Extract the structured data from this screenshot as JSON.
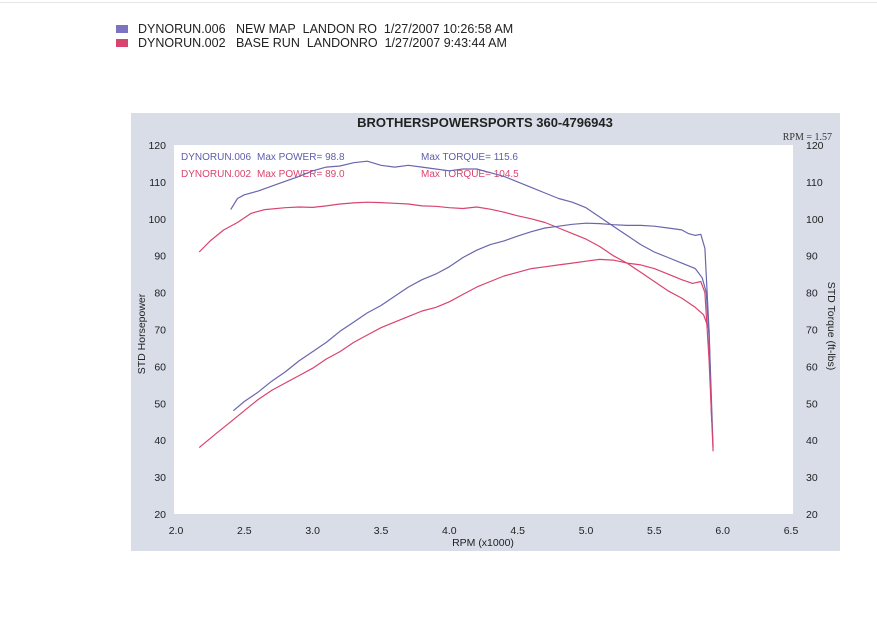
{
  "legend": [
    {
      "run": "DYNORUN.006",
      "name": "NEW MAP",
      "operator": "LANDON RO",
      "date": "1/27/2007 10:26:58 AM",
      "color": "#7b74c0"
    },
    {
      "run": "DYNORUN.002",
      "name": "BASE RUN",
      "operator": "LANDONRO",
      "date": "1/27/2007 9:43:44 AM",
      "color": "#d9446e"
    }
  ],
  "chart_data": {
    "type": "line",
    "title": "BROTHERSPOWERSPORTS 360-4796943",
    "rpm_note": "RPM = 1.57",
    "xlabel": "RPM (x1000)",
    "ylabel_left": "STD Horsepower",
    "ylabel_right": "STD Torque (ft-lbs)",
    "xlim": [
      2.0,
      6.5
    ],
    "ylim_left": [
      20,
      120
    ],
    "ylim_right": [
      20,
      120
    ],
    "x_ticks": [
      "2.0",
      "2.5",
      "3.0",
      "3.5",
      "4.0",
      "4.5",
      "5.0",
      "5.5",
      "6.0",
      "6.5"
    ],
    "y_ticks_left": [
      "120",
      "110",
      "100",
      "90",
      "80",
      "70",
      "60",
      "50",
      "40",
      "30",
      "20"
    ],
    "y_ticks_right": [
      "120",
      "110",
      "100",
      "90",
      "80",
      "70",
      "60",
      "50",
      "40",
      "30",
      "20"
    ],
    "grid": false,
    "annotations": [
      {
        "label": "DYNORUN.006",
        "power_text": "Max POWER= 98.8",
        "torque_text": "Max TORQUE= 115.6",
        "color": "#5e5ea8"
      },
      {
        "label": "DYNORUN.002",
        "power_text": "Max POWER= 89.0",
        "torque_text": "Max TORQUE= 104.5",
        "color": "#d9446e"
      }
    ],
    "series": [
      {
        "name": "DYNORUN.006 Torque",
        "color": "#6a66ad",
        "axis": "right",
        "points": [
          [
            2.4,
            102.5
          ],
          [
            2.45,
            105.5
          ],
          [
            2.5,
            106.5
          ],
          [
            2.6,
            107.5
          ],
          [
            2.75,
            109.5
          ],
          [
            2.9,
            111.5
          ],
          [
            3.0,
            113
          ],
          [
            3.1,
            114
          ],
          [
            3.2,
            114.3
          ],
          [
            3.3,
            115.2
          ],
          [
            3.4,
            115.6
          ],
          [
            3.5,
            114.5
          ],
          [
            3.6,
            114
          ],
          [
            3.7,
            114.5
          ],
          [
            3.8,
            114
          ],
          [
            3.9,
            113.5
          ],
          [
            4.0,
            113
          ],
          [
            4.1,
            113.5
          ],
          [
            4.2,
            113.5
          ],
          [
            4.3,
            112.5
          ],
          [
            4.4,
            111.5
          ],
          [
            4.5,
            110
          ],
          [
            4.6,
            108.5
          ],
          [
            4.7,
            107
          ],
          [
            4.8,
            105.5
          ],
          [
            4.9,
            104.5
          ],
          [
            5.0,
            103
          ],
          [
            5.1,
            100.5
          ],
          [
            5.2,
            98
          ],
          [
            5.3,
            95.5
          ],
          [
            5.4,
            93
          ],
          [
            5.5,
            91
          ],
          [
            5.6,
            89.5
          ],
          [
            5.7,
            88
          ],
          [
            5.8,
            86.5
          ],
          [
            5.85,
            84
          ],
          [
            5.88,
            80
          ],
          [
            5.9,
            68
          ],
          [
            5.92,
            45
          ]
        ]
      },
      {
        "name": "DYNORUN.002 Torque",
        "color": "#d9446e",
        "axis": "right",
        "points": [
          [
            2.17,
            91
          ],
          [
            2.25,
            94
          ],
          [
            2.35,
            97
          ],
          [
            2.45,
            99
          ],
          [
            2.55,
            101.5
          ],
          [
            2.65,
            102.5
          ],
          [
            2.8,
            103
          ],
          [
            2.9,
            103.2
          ],
          [
            3.0,
            103.1
          ],
          [
            3.1,
            103.5
          ],
          [
            3.2,
            104
          ],
          [
            3.3,
            104.3
          ],
          [
            3.4,
            104.5
          ],
          [
            3.5,
            104.4
          ],
          [
            3.6,
            104.2
          ],
          [
            3.7,
            104
          ],
          [
            3.8,
            103.5
          ],
          [
            3.9,
            103.4
          ],
          [
            4.0,
            103
          ],
          [
            4.1,
            102.8
          ],
          [
            4.2,
            103.2
          ],
          [
            4.3,
            102.6
          ],
          [
            4.4,
            101.8
          ],
          [
            4.5,
            100.8
          ],
          [
            4.6,
            100
          ],
          [
            4.7,
            99
          ],
          [
            4.8,
            97.5
          ],
          [
            4.9,
            96
          ],
          [
            5.0,
            94.5
          ],
          [
            5.1,
            92.5
          ],
          [
            5.2,
            90
          ],
          [
            5.3,
            88
          ],
          [
            5.4,
            85.5
          ],
          [
            5.5,
            83
          ],
          [
            5.6,
            80.5
          ],
          [
            5.7,
            78.5
          ],
          [
            5.8,
            76
          ],
          [
            5.86,
            74
          ],
          [
            5.9,
            70
          ],
          [
            5.92,
            46
          ]
        ]
      },
      {
        "name": "DYNORUN.006 Power",
        "color": "#6a66ad",
        "axis": "left",
        "points": [
          [
            2.42,
            48
          ],
          [
            2.5,
            50.5
          ],
          [
            2.6,
            53
          ],
          [
            2.7,
            56
          ],
          [
            2.8,
            58.5
          ],
          [
            2.9,
            61.5
          ],
          [
            3.0,
            64
          ],
          [
            3.1,
            66.5
          ],
          [
            3.2,
            69.5
          ],
          [
            3.3,
            72
          ],
          [
            3.4,
            74.5
          ],
          [
            3.5,
            76.5
          ],
          [
            3.6,
            79
          ],
          [
            3.7,
            81.5
          ],
          [
            3.8,
            83.5
          ],
          [
            3.9,
            85
          ],
          [
            4.0,
            87
          ],
          [
            4.1,
            89.5
          ],
          [
            4.2,
            91.5
          ],
          [
            4.3,
            93
          ],
          [
            4.4,
            94
          ],
          [
            4.5,
            95.3
          ],
          [
            4.6,
            96.5
          ],
          [
            4.7,
            97.5
          ],
          [
            4.8,
            98
          ],
          [
            4.9,
            98.5
          ],
          [
            5.0,
            98.8
          ],
          [
            5.1,
            98.7
          ],
          [
            5.2,
            98.4
          ],
          [
            5.3,
            98.2
          ],
          [
            5.4,
            98.2
          ],
          [
            5.5,
            98
          ],
          [
            5.6,
            97.5
          ],
          [
            5.7,
            97
          ],
          [
            5.75,
            96
          ],
          [
            5.8,
            95.5
          ],
          [
            5.84,
            95.8
          ],
          [
            5.87,
            92
          ],
          [
            5.9,
            70
          ],
          [
            5.93,
            38
          ]
        ]
      },
      {
        "name": "DYNORUN.002 Power",
        "color": "#d9446e",
        "axis": "left",
        "points": [
          [
            2.17,
            38
          ],
          [
            2.3,
            42
          ],
          [
            2.4,
            45
          ],
          [
            2.5,
            48
          ],
          [
            2.6,
            51
          ],
          [
            2.7,
            53.5
          ],
          [
            2.8,
            55.5
          ],
          [
            2.9,
            57.5
          ],
          [
            3.0,
            59.5
          ],
          [
            3.1,
            62
          ],
          [
            3.2,
            64
          ],
          [
            3.3,
            66.5
          ],
          [
            3.4,
            68.5
          ],
          [
            3.5,
            70.5
          ],
          [
            3.6,
            72
          ],
          [
            3.7,
            73.5
          ],
          [
            3.8,
            75
          ],
          [
            3.9,
            76
          ],
          [
            4.0,
            77.5
          ],
          [
            4.1,
            79.5
          ],
          [
            4.2,
            81.5
          ],
          [
            4.3,
            83
          ],
          [
            4.4,
            84.5
          ],
          [
            4.5,
            85.5
          ],
          [
            4.6,
            86.5
          ],
          [
            4.7,
            87
          ],
          [
            4.8,
            87.5
          ],
          [
            4.9,
            88
          ],
          [
            5.0,
            88.5
          ],
          [
            5.1,
            89
          ],
          [
            5.2,
            88.8
          ],
          [
            5.3,
            88
          ],
          [
            5.4,
            87.5
          ],
          [
            5.5,
            86.5
          ],
          [
            5.6,
            85
          ],
          [
            5.7,
            83.5
          ],
          [
            5.78,
            82.5
          ],
          [
            5.84,
            83
          ],
          [
            5.87,
            80
          ],
          [
            5.9,
            62
          ],
          [
            5.93,
            37
          ]
        ]
      }
    ]
  }
}
